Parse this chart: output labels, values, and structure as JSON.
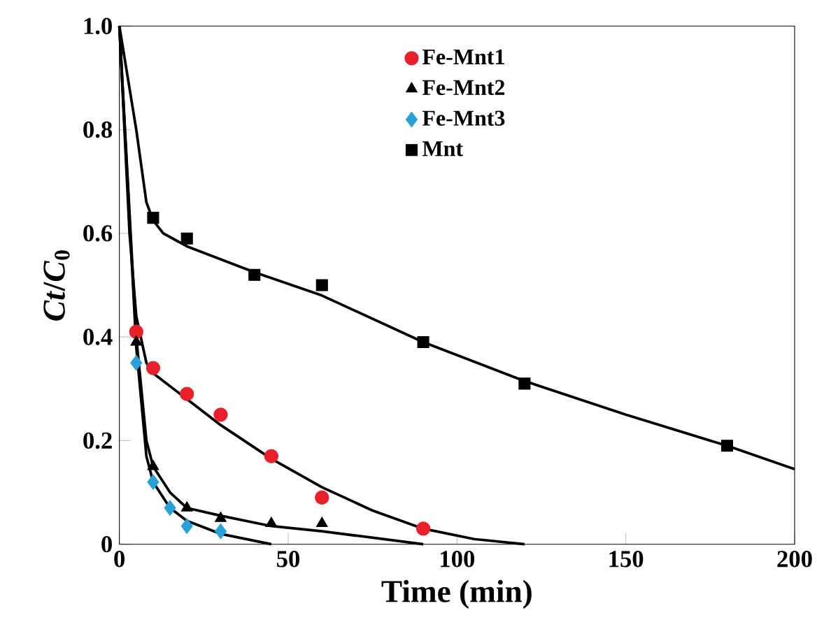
{
  "chart_data": {
    "type": "scatter",
    "xlabel": "Time (min)",
    "ylabel": "*Ct*/*C*$_{0}$",
    "xlim": [
      0,
      200
    ],
    "xticks": [
      0,
      50,
      100,
      150,
      200
    ],
    "ylim": [
      0,
      1
    ],
    "yticks": [
      0,
      0.2,
      0.4,
      0.6,
      0.8,
      {
        "value": 1,
        "label": "1.0"
      }
    ],
    "legend": "top",
    "series": [
      {
        "name": "Fe-Mnt1",
        "marker": "circle",
        "color": "#e8202a",
        "x": [
          5,
          10,
          20,
          30,
          45,
          60,
          90
        ],
        "values": [
          0.41,
          0.34,
          0.29,
          0.25,
          0.17,
          0.09,
          0.03
        ]
      },
      {
        "name": "Fe-Mnt2",
        "marker": "triangle",
        "color": "#000000",
        "x": [
          5,
          10,
          20,
          30,
          45,
          60
        ],
        "values": [
          0.39,
          0.15,
          0.07,
          0.05,
          0.04,
          0.04
        ]
      },
      {
        "name": "Fe-Mnt3",
        "marker": "diamond",
        "color": "#29a0d8",
        "x": [
          5,
          10,
          15,
          20,
          30
        ],
        "values": [
          0.35,
          0.12,
          0.07,
          0.035,
          0.025
        ]
      },
      {
        "name": "Mnt",
        "marker": "square",
        "color": "#000000",
        "x": [
          10,
          20,
          40,
          60,
          90,
          120,
          180
        ],
        "values": [
          0.63,
          0.59,
          0.52,
          0.5,
          0.39,
          0.31,
          0.19
        ]
      },
      {
        "type": "line",
        "marker": "none",
        "color": "#000000",
        "x": [
          0,
          3,
          5,
          8,
          10,
          20,
          30,
          45,
          60,
          75,
          90,
          105,
          120
        ],
        "values": [
          1.0,
          0.6,
          0.44,
          0.35,
          0.33,
          0.28,
          0.23,
          0.165,
          0.11,
          0.065,
          0.03,
          0.01,
          0.0
        ]
      },
      {
        "type": "line",
        "marker": "none",
        "color": "#000000",
        "x": [
          0,
          5,
          8,
          10,
          15,
          20,
          30,
          45,
          60,
          90
        ],
        "values": [
          1.0,
          0.4,
          0.2,
          0.15,
          0.1,
          0.07,
          0.055,
          0.035,
          0.025,
          0.0
        ]
      },
      {
        "type": "line",
        "marker": "none",
        "color": "#000000",
        "x": [
          0,
          5,
          8,
          10,
          15,
          20,
          30,
          45
        ],
        "values": [
          1.0,
          0.38,
          0.17,
          0.12,
          0.07,
          0.045,
          0.02,
          0.0
        ]
      },
      {
        "type": "line",
        "marker": "none",
        "color": "#000000",
        "x": [
          0,
          5,
          8,
          10,
          13,
          20,
          40,
          60,
          90,
          120,
          150,
          180,
          200
        ],
        "values": [
          1.0,
          0.8,
          0.66,
          0.625,
          0.6,
          0.575,
          0.525,
          0.48,
          0.39,
          0.315,
          0.25,
          0.19,
          0.145
        ]
      }
    ]
  }
}
